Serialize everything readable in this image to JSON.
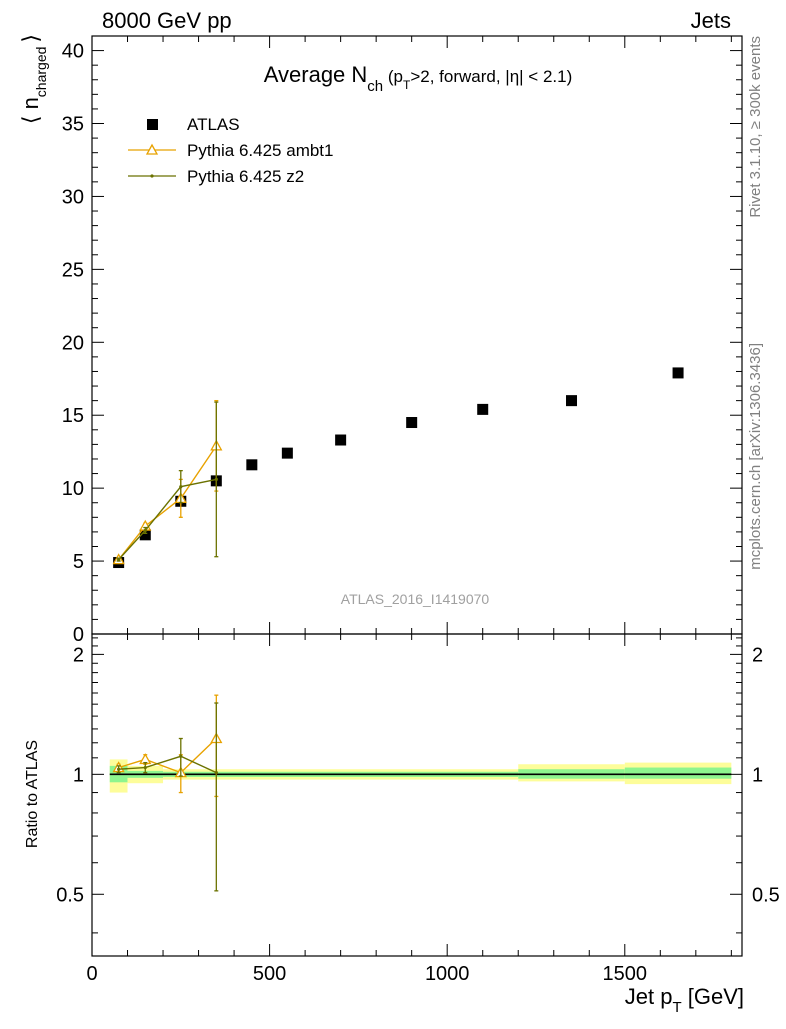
{
  "header": {
    "left": "8000 GeV pp",
    "right": "Jets",
    "side_rivet": "Rivet 3.1.10, ≥ 300k events",
    "side_mcplots": "mcplots.cern.ch [arXiv:1306.3436]",
    "watermark": "ATLAS_2016_I1419070"
  },
  "colors": {
    "data": "#000000",
    "ambt1": "#e8a200",
    "z2": "#6b7200",
    "band_inner": "#8ef58e",
    "band_outer": "#fdfd9a"
  },
  "chart_data": [
    {
      "type": "line",
      "title": "Average N",
      "title_sub": "ch",
      "title_rest": " (p",
      "title_sub2": "T",
      "title_rest2": ">2, forward, |η| < 2.1)",
      "ylabel_main": "⟨ n",
      "ylabel_sub": "charged",
      "ylabel_close": "⟩",
      "xlim": [
        0,
        1830
      ],
      "ylim": [
        0,
        41
      ],
      "yticks": [
        0,
        5,
        10,
        15,
        20,
        25,
        30,
        35,
        40
      ],
      "ytick_labels": [
        "0",
        "5",
        "10",
        "15",
        "20",
        "25",
        "30",
        "35",
        "40"
      ],
      "legend_position": "top-left",
      "series": [
        {
          "name": "ATLAS",
          "style": "square-markers",
          "x": [
            75,
            150,
            250,
            350,
            450,
            550,
            700,
            900,
            1100,
            1350,
            1650
          ],
          "y": [
            4.9,
            6.8,
            9.1,
            10.5,
            11.6,
            12.4,
            13.3,
            14.5,
            15.4,
            16.0,
            17.9
          ]
        },
        {
          "name": "Pythia 6.425 ambt1",
          "style": "open-triangle-line",
          "x": [
            75,
            150,
            250,
            350
          ],
          "y": [
            5.1,
            7.4,
            9.3,
            12.9
          ],
          "yerr": [
            0.1,
            0.2,
            1.3,
            3.1
          ]
        },
        {
          "name": "Pythia 6.425 z2",
          "style": "dot-line",
          "x": [
            75,
            150,
            250,
            350
          ],
          "y": [
            5.1,
            7.1,
            10.1,
            10.6
          ],
          "yerr": [
            0.1,
            0.2,
            1.1,
            5.3
          ]
        }
      ]
    },
    {
      "type": "line",
      "ylabel": "Ratio to ATLAS",
      "xlabel_main": "Jet p",
      "xlabel_sub": "T",
      "xlabel_rest": " [GeV]",
      "xlim": [
        0,
        1830
      ],
      "ylim": [
        0.35,
        2.25
      ],
      "yticks": [
        0.5,
        1,
        2
      ],
      "ytick_labels": [
        "0.5",
        "1",
        "2"
      ],
      "xticks": [
        0,
        500,
        1000,
        1500
      ],
      "xtick_labels": [
        "0",
        "500",
        "1000",
        "1500"
      ],
      "bands": {
        "x_edges": [
          50,
          100,
          200,
          1200,
          1500,
          1800
        ],
        "inner_low": [
          0.955,
          0.98,
          0.985,
          0.975,
          0.975
        ],
        "inner_high": [
          1.05,
          1.02,
          1.015,
          1.03,
          1.04
        ],
        "outer_low": [
          0.9,
          0.95,
          0.97,
          0.96,
          0.945
        ],
        "outer_high": [
          1.09,
          1.05,
          1.03,
          1.06,
          1.07
        ]
      },
      "series": [
        {
          "name": "Pythia 6.425 ambt1",
          "x": [
            75,
            150,
            250,
            350
          ],
          "y": [
            1.04,
            1.09,
            1.01,
            1.23
          ],
          "yerr": [
            0.02,
            0.03,
            0.11,
            0.35
          ]
        },
        {
          "name": "Pythia 6.425 z2",
          "x": [
            75,
            150,
            250,
            350
          ],
          "y": [
            1.03,
            1.04,
            1.11,
            1.01
          ],
          "yerr": [
            0.02,
            0.03,
            0.12,
            0.5
          ]
        }
      ]
    }
  ]
}
